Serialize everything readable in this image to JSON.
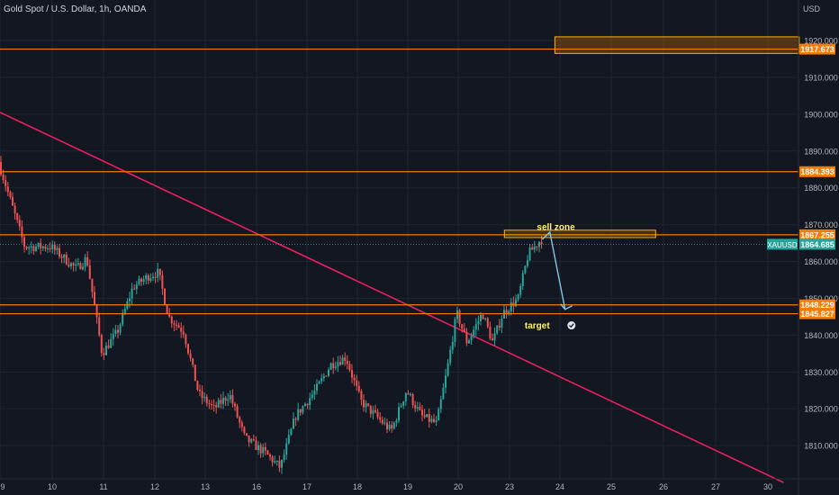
{
  "header": {
    "symbol_title": "Gold Spot / U.S. Dollar, 1h, OANDA",
    "currency": "USD"
  },
  "colors": {
    "background": "#131722",
    "grid": "#1f2430",
    "candle_up": "#26a69a",
    "candle_down": "#ef5350",
    "level_line": "#f57c00",
    "trendline": "#e91e63",
    "zone_fill": "rgba(245,124,0,0.25)",
    "zone_border": "#ffb300",
    "current_price_tag": "#26a69a",
    "arrow": "#7ec8e3",
    "annotation_text": "#fff176"
  },
  "chart_data": {
    "type": "candlestick",
    "instrument": "XAUUSD",
    "timeframe": "1h",
    "ylim": [
      1801,
      1931
    ],
    "y_ticks": [
      1810,
      1820,
      1830,
      1840,
      1850,
      1860,
      1870,
      1880,
      1890,
      1900,
      1910,
      1920
    ],
    "y_tick_labels": [
      "1810.000",
      "1820.000",
      "1830.000",
      "1840.000",
      "1850.000",
      "1860.000",
      "1870.000",
      "1880.000",
      "1890.000",
      "1900.000",
      "1910.000",
      "1920.000"
    ],
    "x_ticks": [
      "9",
      "10",
      "11",
      "12",
      "13",
      "16",
      "17",
      "18",
      "19",
      "20",
      "23",
      "24",
      "25",
      "26",
      "27",
      "30"
    ],
    "grid": true,
    "price_path": [
      [
        0,
        1887
      ],
      [
        0.5,
        1864
      ],
      [
        1,
        1864
      ],
      [
        1.5,
        1858
      ],
      [
        1.7,
        1861
      ],
      [
        2,
        1835
      ],
      [
        2.3,
        1841
      ],
      [
        2.6,
        1853
      ],
      [
        2.9,
        1856
      ],
      [
        3.1,
        1857
      ],
      [
        3.3,
        1845
      ],
      [
        3.6,
        1841
      ],
      [
        3.9,
        1824
      ],
      [
        4.2,
        1820
      ],
      [
        4.5,
        1824
      ],
      [
        4.8,
        1812
      ],
      [
        5.2,
        1808
      ],
      [
        5.5,
        1804
      ],
      [
        5.8,
        1818
      ],
      [
        6.2,
        1825
      ],
      [
        6.5,
        1832
      ],
      [
        6.8,
        1834
      ],
      [
        7.1,
        1822
      ],
      [
        7.4,
        1818
      ],
      [
        7.7,
        1814
      ],
      [
        8.0,
        1825
      ],
      [
        8.3,
        1818
      ],
      [
        8.6,
        1816
      ],
      [
        8.8,
        1830
      ],
      [
        9.0,
        1846
      ],
      [
        9.2,
        1838
      ],
      [
        9.5,
        1846
      ],
      [
        9.7,
        1838
      ],
      [
        9.9,
        1846
      ],
      [
        10.2,
        1850
      ],
      [
        10.4,
        1862
      ],
      [
        10.65,
        1866
      ]
    ],
    "horizontal_levels": [
      {
        "price": 1917.673,
        "label": "1917.673"
      },
      {
        "price": 1884.393,
        "label": "1884.393"
      },
      {
        "price": 1867.255,
        "label": "1867.255"
      },
      {
        "price": 1848.229,
        "label": "1848.229"
      },
      {
        "price": 1845.827,
        "label": "1845.827"
      }
    ],
    "current_price": {
      "symbol": "XAUUSD",
      "price": 1864.685,
      "label": "1864.685"
    },
    "zones": [
      {
        "label": "",
        "price_top": 1921,
        "price_bottom": 1916.5,
        "x_start": 10.9,
        "x_end": 15.6,
        "price_label": "1920.000"
      },
      {
        "label": "sell zone",
        "price_top": 1868.5,
        "price_bottom": 1866.5,
        "x_start": 9.9,
        "x_end": 12.85
      }
    ],
    "trendline": {
      "start": [
        0,
        1900.5
      ],
      "end": [
        15.3,
        1800
      ]
    },
    "forecast_path": [
      [
        10.65,
        1866
      ],
      [
        10.8,
        1868
      ],
      [
        11.1,
        1847
      ],
      [
        11.3,
        1849
      ]
    ],
    "annotations": [
      {
        "text": "sell zone",
        "x": 10.92,
        "y": 1868.6
      },
      {
        "text": "target",
        "x": 10.55,
        "y": 1841.8
      }
    ]
  }
}
